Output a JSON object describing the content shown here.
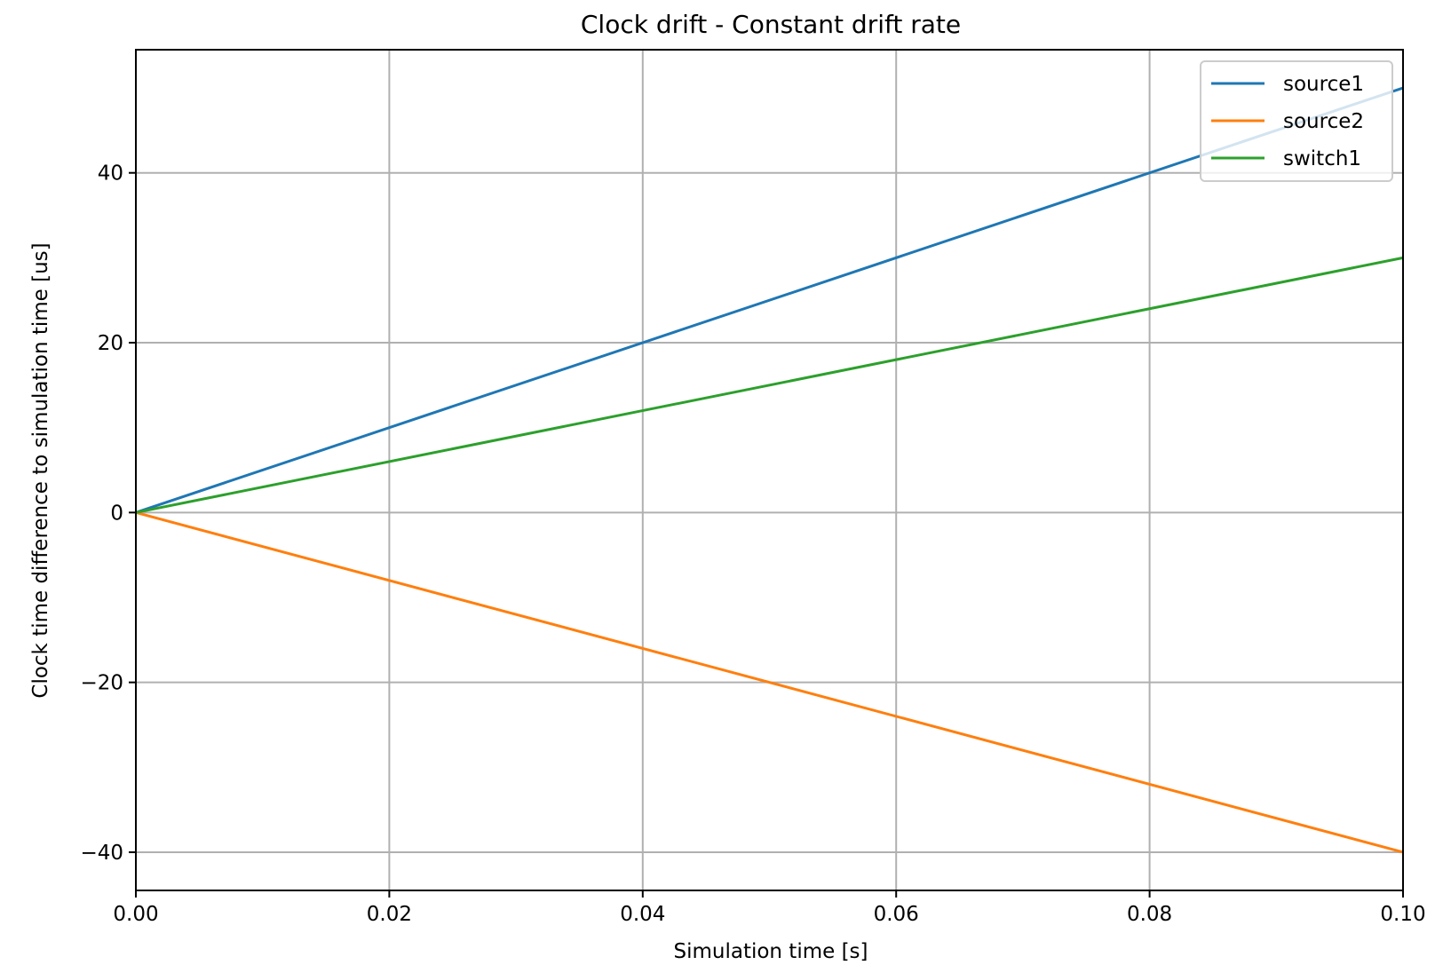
{
  "chart_data": {
    "type": "line",
    "title": "Clock drift - Constant drift rate",
    "xlabel": "Simulation time [s]",
    "ylabel": "Clock time difference to simulation time [us]",
    "xlim": [
      0.0,
      0.1
    ],
    "ylim": [
      -44.5,
      54.5
    ],
    "xticks": [
      0.0,
      0.02,
      0.04,
      0.06,
      0.08,
      0.1
    ],
    "xtick_labels": [
      "0.00",
      "0.02",
      "0.04",
      "0.06",
      "0.08",
      "0.10"
    ],
    "yticks": [
      -40,
      -20,
      0,
      20,
      40
    ],
    "ytick_labels": [
      "−40",
      "−20",
      "0",
      "20",
      "40"
    ],
    "grid": true,
    "legend_position": "top-right",
    "series": [
      {
        "name": "source1",
        "color": "#1f77b4",
        "x": [
          0.0,
          0.1
        ],
        "y": [
          0,
          50
        ]
      },
      {
        "name": "source2",
        "color": "#ff7f0e",
        "x": [
          0.0,
          0.1
        ],
        "y": [
          0,
          -40
        ]
      },
      {
        "name": "switch1",
        "color": "#2ca02c",
        "x": [
          0.0,
          0.1
        ],
        "y": [
          0,
          30
        ]
      }
    ]
  }
}
